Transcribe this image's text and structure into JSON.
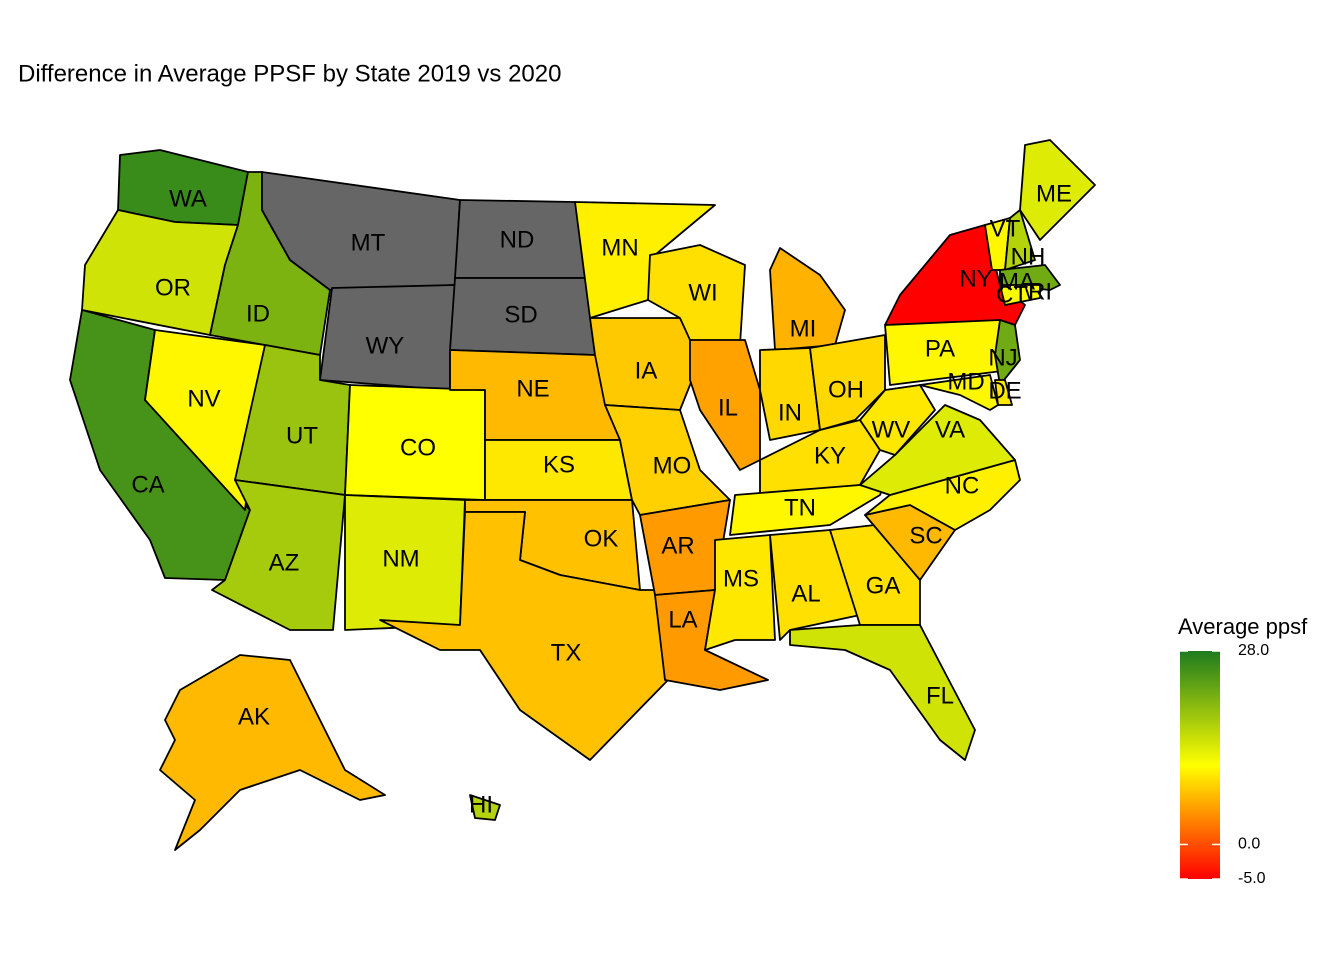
{
  "chart_data": {
    "type": "choropleth",
    "title": "Difference in Average PPSF by State 2019 vs 2020",
    "legend_title": "Average ppsf",
    "lim": [
      -5,
      28
    ],
    "ticks": [
      {
        "value": 28,
        "label": "28.0"
      },
      {
        "value": 0,
        "label": "0.0"
      },
      {
        "value": -5,
        "label": "-5.0"
      }
    ],
    "colors": [
      "#ff0000",
      "#ffff00",
      "#1e7b1e"
    ],
    "na_color": "#666666",
    "states": [
      {
        "name": "WA",
        "value": 26
      },
      {
        "name": "OR",
        "value": 15
      },
      {
        "name": "CA",
        "value": 25
      },
      {
        "name": "NV",
        "value": 11
      },
      {
        "name": "ID",
        "value": 21
      },
      {
        "name": "MT",
        "value": null
      },
      {
        "name": "WY",
        "value": null
      },
      {
        "name": "ND",
        "value": null
      },
      {
        "name": "SD",
        "value": null
      },
      {
        "name": "UT",
        "value": 19
      },
      {
        "name": "CO",
        "value": 11.5
      },
      {
        "name": "AZ",
        "value": 18
      },
      {
        "name": "NM",
        "value": 14
      },
      {
        "name": "NE",
        "value": 7
      },
      {
        "name": "KS",
        "value": 10
      },
      {
        "name": "OK",
        "value": 7.5
      },
      {
        "name": "TX",
        "value": 7.5
      },
      {
        "name": "MN",
        "value": 10.5
      },
      {
        "name": "IA",
        "value": 8
      },
      {
        "name": "MO",
        "value": 8.5
      },
      {
        "name": "AR",
        "value": 5
      },
      {
        "name": "LA",
        "value": 5
      },
      {
        "name": "WI",
        "value": 9.5
      },
      {
        "name": "IL",
        "value": 5.5
      },
      {
        "name": "MI",
        "value": 6.5
      },
      {
        "name": "IN",
        "value": 9
      },
      {
        "name": "OH",
        "value": 9
      },
      {
        "name": "KY",
        "value": 9.5
      },
      {
        "name": "TN",
        "value": 11
      },
      {
        "name": "MS",
        "value": 10
      },
      {
        "name": "AL",
        "value": 9.5
      },
      {
        "name": "GA",
        "value": 9.5
      },
      {
        "name": "FL",
        "value": 15
      },
      {
        "name": "SC",
        "value": 7
      },
      {
        "name": "NC",
        "value": 10.5
      },
      {
        "name": "VA",
        "value": 14
      },
      {
        "name": "WV",
        "value": 10
      },
      {
        "name": "PA",
        "value": 11
      },
      {
        "name": "NY",
        "value": -5
      },
      {
        "name": "NJ",
        "value": 22
      },
      {
        "name": "DE",
        "value": 10
      },
      {
        "name": "MD",
        "value": 11
      },
      {
        "name": "VT",
        "value": 11
      },
      {
        "name": "NH",
        "value": 17
      },
      {
        "name": "ME",
        "value": 14
      },
      {
        "name": "MA",
        "value": 22
      },
      {
        "name": "CT",
        "value": 12
      },
      {
        "name": "RI",
        "value": 12
      },
      {
        "name": "AK",
        "value": 7
      },
      {
        "name": "HI",
        "value": 17
      }
    ]
  }
}
